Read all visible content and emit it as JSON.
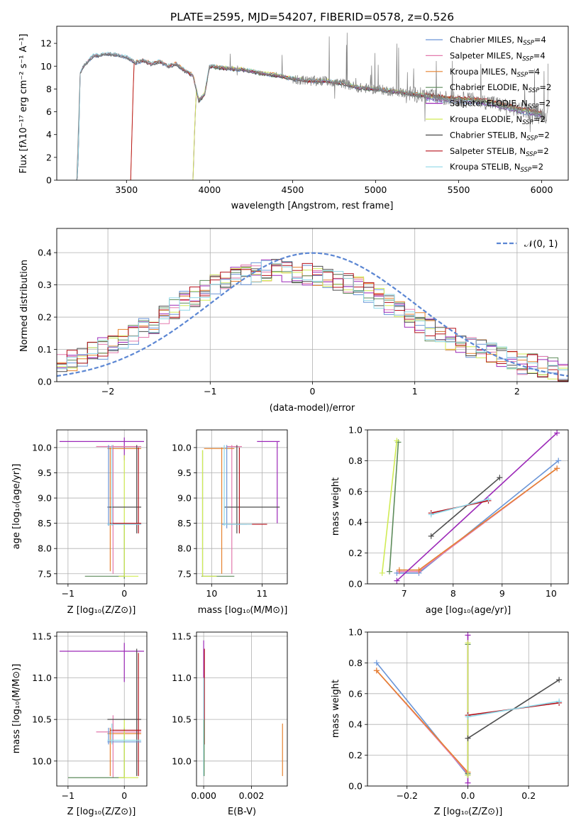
{
  "figure": {
    "title": "PLATE=2595, MJD=54207, FIBERID=0578, z=0.526"
  },
  "models": [
    {
      "name": "Chabrier MILES, N_SSP=4",
      "base": "Chabrier MILES, N",
      "sub": "SSP",
      "tail": "=4",
      "color": "#6a95d7"
    },
    {
      "name": "Salpeter MILES, N_SSP=4",
      "base": "Salpeter MILES, N",
      "sub": "SSP",
      "tail": "=4",
      "color": "#e37aad"
    },
    {
      "name": "Kroupa MILES, N_SSP=4",
      "base": "Kroupa MILES, N",
      "sub": "SSP",
      "tail": "=4",
      "color": "#e6822f"
    },
    {
      "name": "Chabrier ELODIE, N_SSP=2",
      "base": "Chabrier ELODIE, N",
      "sub": "SSP",
      "tail": "=2",
      "color": "#5e8c5b"
    },
    {
      "name": "Salpeter ELODIE, N_SSP=2",
      "base": "Salpeter ELODIE, N",
      "sub": "SSP",
      "tail": "=2",
      "color": "#9c29b8"
    },
    {
      "name": "Kroupa ELODIE, N_SSP=2",
      "base": "Kroupa ELODIE, N",
      "sub": "SSP",
      "tail": "=2",
      "color": "#d0eb55"
    },
    {
      "name": "Chabrier STELIB, N_SSP=2",
      "base": "Chabrier STELIB, N",
      "sub": "SSP",
      "tail": "=2",
      "color": "#4d4d4d"
    },
    {
      "name": "Salpeter STELIB, N_SSP=2",
      "base": "Salpeter STELIB, N",
      "sub": "SSP",
      "tail": "=2",
      "color": "#b5121b"
    },
    {
      "name": "Kroupa STELIB, N_SSP=2",
      "base": "Kroupa STELIB, N",
      "sub": "SSP",
      "tail": "=2",
      "color": "#8fd8e8"
    }
  ],
  "labels": {
    "spec_xlabel": "wavelength [Angstrom, rest frame]",
    "spec_ylabel": "Flux [fλ10⁻¹⁷ erg cm⁻² s⁻¹ A⁻¹]",
    "res_xlabel": "(data-model)/error",
    "res_ylabel": "Normed distribution",
    "gauss_label": "𝒩(0, 1)",
    "age_ylabel": "age  [log₁₀(age/yr)]",
    "z_xlabel": "Z [log₁₀(Z/Z⊙)]",
    "mass_xlabel": "mass [log₁₀(M/M⊙)]",
    "mw_ylabel": "mass weight",
    "age_xlabel": "age  [log₁₀(age/yr)]",
    "mass_ylabel": "mass [log₁₀(M/M⊙)]",
    "ebv_xlabel": "E(B-V)"
  },
  "chart_data": [
    {
      "id": "spectrum",
      "type": "line",
      "title": "PLATE=2595, MJD=54207, FIBERID=0578, z=0.526",
      "xlabel": "wavelength [Angstrom, rest frame]",
      "ylabel": "Flux [fλ10⁻¹⁷ erg cm⁻² s⁻¹ A⁻¹]",
      "xlim": [
        3080,
        6160
      ],
      "ylim": [
        0,
        13.5
      ],
      "xticks": [
        3500,
        4000,
        4500,
        5000,
        5500,
        6000
      ],
      "yticks": [
        0,
        2,
        4,
        6,
        8,
        10,
        12
      ],
      "legend": "top-right",
      "grid": false,
      "data_color": "#808080",
      "model_starts": [
        3200,
        3200,
        3525,
        3900,
        3900,
        3900,
        3200,
        3525,
        3200
      ],
      "continuum": {
        "x": [
          3200,
          3220,
          3240,
          3300,
          3400,
          3500,
          3550,
          3600,
          3650,
          3700,
          3750,
          3800,
          3850,
          3900,
          3935,
          3970,
          4000,
          4050,
          4100,
          4200,
          4300,
          4400,
          4500,
          4600,
          4700,
          4800,
          4900,
          5000,
          5100,
          5200,
          5300,
          5400,
          5500,
          5600,
          5700,
          5800,
          5900,
          6000,
          6050
        ],
        "y": [
          0,
          9.3,
          10.0,
          10.9,
          11.1,
          10.8,
          10.3,
          10.5,
          10.2,
          10.4,
          10.0,
          10.2,
          9.6,
          9.2,
          7.0,
          7.5,
          10.0,
          9.9,
          9.8,
          9.7,
          9.4,
          9.2,
          8.9,
          8.7,
          8.7,
          8.5,
          8.1,
          8.0,
          7.8,
          7.6,
          7.4,
          7.2,
          7.1,
          7.0,
          6.8,
          6.4,
          6.1,
          5.8,
          5.6
        ]
      }
    },
    {
      "id": "residuals",
      "type": "histogram",
      "xlabel": "(data-model)/error",
      "ylabel": "Normed distribution",
      "xlim": [
        -2.5,
        2.5
      ],
      "ylim": [
        0,
        0.475
      ],
      "xticks": [
        -2,
        -1,
        0,
        1,
        2
      ],
      "yticks": [
        0.0,
        0.1,
        0.2,
        0.3,
        0.4
      ],
      "bin_width": 0.1,
      "gaussian": {
        "name": "𝒩(0, 1)",
        "mu": 0,
        "sigma": 1,
        "color": "#5b86d3"
      },
      "base_curve": {
        "x": [
          -2.5,
          -2.0,
          -1.6,
          -1.2,
          -0.8,
          -0.4,
          0.0,
          0.4,
          0.8,
          1.2,
          1.6,
          2.0,
          2.5
        ],
        "y": [
          0.05,
          0.11,
          0.17,
          0.26,
          0.32,
          0.35,
          0.33,
          0.3,
          0.23,
          0.15,
          0.1,
          0.06,
          0.03
        ]
      },
      "grid": true,
      "legend": "top-right"
    },
    {
      "id": "age_vs_Z",
      "type": "errorbar",
      "xlabel": "Z [log₁₀(Z/Z⊙)]",
      "ylabel": "age  [log₁₀(age/yr)]",
      "xlim": [
        -1.2,
        0.4
      ],
      "ylim": [
        7.3,
        10.35
      ],
      "xticks": [
        -1,
        0
      ],
      "yticks": [
        7.5,
        8.0,
        8.5,
        9.0,
        9.5,
        10.0
      ],
      "segments": [
        {
          "m": 4,
          "h": [
            -1.15,
            0.35,
            10.12
          ],
          "v": [
            0.0,
            9.75,
            10.2
          ]
        },
        {
          "m": 1,
          "h": [
            -0.5,
            0.3,
            10.02
          ],
          "v": [
            -0.2,
            7.5,
            10.05
          ]
        },
        {
          "m": 2,
          "h": [
            -0.3,
            0.3,
            9.98
          ],
          "v": [
            -0.25,
            7.55,
            10.0
          ]
        },
        {
          "m": 3,
          "h": [
            -0.7,
            0.0,
            7.45
          ],
          "v": [
            0.0,
            7.4,
            8.5
          ]
        },
        {
          "m": 5,
          "h": [
            -0.1,
            0.25,
            7.45
          ],
          "v": [
            0.0,
            7.45,
            9.85
          ]
        },
        {
          "m": 6,
          "h": [
            -0.3,
            0.3,
            8.82
          ],
          "v": [
            0.22,
            8.3,
            10.05
          ]
        },
        {
          "m": 7,
          "h": [
            -0.25,
            0.3,
            8.5
          ],
          "v": [
            0.25,
            8.3,
            10.0
          ]
        },
        {
          "m": 0,
          "h": [
            -0.3,
            0.3,
            8.48
          ],
          "v": [
            -0.28,
            8.45,
            10.05
          ]
        },
        {
          "m": 8,
          "h": [
            -0.3,
            0.3,
            8.48
          ],
          "v": [
            -0.22,
            8.45,
            10.05
          ]
        }
      ]
    },
    {
      "id": "age_vs_mass",
      "type": "errorbar",
      "xlabel": "mass [log₁₀(M/M⊙)]",
      "ylabel": "",
      "xlim": [
        9.7,
        11.5
      ],
      "ylim": [
        7.3,
        10.35
      ],
      "xticks": [
        10,
        11
      ],
      "yticks": [
        7.5,
        8.0,
        8.5,
        9.0,
        9.5,
        10.0
      ],
      "segments": [
        {
          "m": 4,
          "h": [
            10.9,
            11.35,
            10.12
          ],
          "v": [
            11.3,
            8.5,
            10.12
          ]
        },
        {
          "m": 1,
          "h": [
            10.3,
            10.6,
            10.02
          ],
          "v": [
            10.4,
            7.5,
            10.05
          ]
        },
        {
          "m": 2,
          "h": [
            9.85,
            10.45,
            9.98
          ],
          "v": [
            10.2,
            7.5,
            10.0
          ]
        },
        {
          "m": 3,
          "h": [
            9.8,
            10.45,
            7.45
          ],
          "v": [
            9.82,
            7.45,
            9.95
          ]
        },
        {
          "m": 5,
          "h": [
            9.82,
            10.1,
            7.45
          ],
          "v": [
            9.82,
            7.45,
            9.95
          ]
        },
        {
          "m": 6,
          "h": [
            10.25,
            11.35,
            8.82
          ],
          "v": [
            10.5,
            8.3,
            10.05
          ]
        },
        {
          "m": 7,
          "h": [
            10.3,
            11.1,
            8.48
          ],
          "v": [
            10.55,
            8.3,
            10.0
          ]
        },
        {
          "m": 0,
          "h": [
            10.2,
            10.7,
            8.48
          ],
          "v": [
            10.3,
            8.4,
            10.05
          ]
        },
        {
          "m": 8,
          "h": [
            10.25,
            10.8,
            8.48
          ],
          "v": [
            10.25,
            8.45,
            10.05
          ]
        }
      ]
    },
    {
      "id": "massweight_vs_age",
      "type": "line",
      "xlabel": "age  [log₁₀(age/yr)]",
      "ylabel": "mass weight",
      "xlim": [
        6.25,
        10.35
      ],
      "ylim": [
        0,
        1.0
      ],
      "xticks": [
        7,
        8,
        9,
        10
      ],
      "yticks": [
        0.0,
        0.2,
        0.4,
        0.6,
        0.8,
        1.0
      ],
      "series": [
        {
          "m": 0,
          "x": [
            6.85,
            7.3,
            10.15
          ],
          "y": [
            0.07,
            0.07,
            0.8
          ]
        },
        {
          "m": 1,
          "x": [
            6.9,
            7.3,
            10.12
          ],
          "y": [
            0.08,
            0.08,
            0.75
          ]
        },
        {
          "m": 2,
          "x": [
            6.9,
            7.3,
            10.12
          ],
          "y": [
            0.09,
            0.09,
            0.75
          ]
        },
        {
          "m": 3,
          "x": [
            6.7,
            6.88
          ],
          "y": [
            0.08,
            0.92
          ]
        },
        {
          "m": 4,
          "x": [
            6.85,
            10.12
          ],
          "y": [
            0.02,
            0.98
          ]
        },
        {
          "m": 5,
          "x": [
            6.55,
            6.85
          ],
          "y": [
            0.07,
            0.93
          ]
        },
        {
          "m": 6,
          "x": [
            7.55,
            8.95
          ],
          "y": [
            0.31,
            0.69
          ]
        },
        {
          "m": 7,
          "x": [
            7.55,
            8.72
          ],
          "y": [
            0.46,
            0.54
          ]
        },
        {
          "m": 8,
          "x": [
            7.55,
            8.72
          ],
          "y": [
            0.45,
            0.55
          ]
        }
      ]
    },
    {
      "id": "mass_vs_Z",
      "type": "errorbar",
      "xlabel": "Z [log₁₀(Z/Z⊙)]",
      "ylabel": "mass [log₁₀(M/M⊙)]",
      "xlim": [
        -1.2,
        0.4
      ],
      "ylim": [
        9.7,
        11.55
      ],
      "xticks": [
        -1,
        0
      ],
      "yticks": [
        10.0,
        10.5,
        11.0,
        11.5
      ],
      "segments": [
        {
          "m": 4,
          "h": [
            -1.15,
            0.35,
            11.32
          ],
          "v": [
            0.0,
            10.95,
            11.42
          ]
        },
        {
          "m": 1,
          "h": [
            -0.5,
            0.3,
            10.35
          ],
          "v": [
            -0.2,
            9.8,
            10.55
          ]
        },
        {
          "m": 2,
          "h": [
            -0.3,
            0.3,
            10.33
          ],
          "v": [
            -0.25,
            9.82,
            10.4
          ]
        },
        {
          "m": 3,
          "h": [
            -1.0,
            0.0,
            9.8
          ],
          "v": [
            0.0,
            9.8,
            10.4
          ]
        },
        {
          "m": 5,
          "h": [
            -0.1,
            0.25,
            9.8
          ],
          "v": [
            0.0,
            9.8,
            10.5
          ]
        },
        {
          "m": 6,
          "h": [
            -0.3,
            0.3,
            10.5
          ],
          "v": [
            0.22,
            9.82,
            11.35
          ]
        },
        {
          "m": 7,
          "h": [
            -0.25,
            0.3,
            10.37
          ],
          "v": [
            0.25,
            9.82,
            11.3
          ]
        },
        {
          "m": 0,
          "h": [
            -0.3,
            0.3,
            10.23
          ],
          "v": [
            -0.28,
            10.2,
            10.4
          ]
        },
        {
          "m": 8,
          "h": [
            -0.3,
            0.3,
            10.25
          ],
          "v": [
            -0.22,
            10.2,
            10.45
          ]
        }
      ]
    },
    {
      "id": "mass_vs_ebv",
      "type": "errorbar",
      "xlabel": "E(B-V)",
      "ylabel": "",
      "xlim": [
        -0.0003,
        0.0035
      ],
      "ylim": [
        9.7,
        11.55
      ],
      "xticks": [
        0.0,
        0.002
      ],
      "xticklabels": [
        "0.000",
        "0.002"
      ],
      "yticks": [
        10.0,
        10.5,
        11.0,
        11.5
      ],
      "segments": [
        {
          "m": 4,
          "h": [
            0,
            0,
            11.3
          ],
          "v": [
            0.0,
            9.82,
            11.45
          ]
        },
        {
          "m": 7,
          "h": [
            0,
            0,
            10.5
          ],
          "v": [
            3e-05,
            10.2,
            11.35
          ]
        },
        {
          "m": 8,
          "h": [
            0,
            0,
            10.2
          ],
          "v": [
            0.0,
            9.82,
            11.0
          ]
        },
        {
          "m": 2,
          "h": [
            0,
            0,
            10.2
          ],
          "v": [
            0.0033,
            9.82,
            10.45
          ]
        },
        {
          "m": 3,
          "h": [
            0,
            0,
            10.0
          ],
          "v": [
            2e-05,
            9.82,
            10.5
          ]
        }
      ]
    },
    {
      "id": "massweight_vs_Z",
      "type": "line",
      "xlabel": "Z [log₁₀(Z/Z⊙)]",
      "ylabel": "mass weight",
      "xlim": [
        -0.33,
        0.33
      ],
      "ylim": [
        0,
        1.0
      ],
      "xticks": [
        -0.2,
        0.0,
        0.2
      ],
      "xticklabels": [
        "−0.2",
        "0.0",
        "0.2"
      ],
      "yticks": [
        0.0,
        0.2,
        0.4,
        0.6,
        0.8,
        1.0
      ],
      "series": [
        {
          "m": 0,
          "x": [
            -0.3,
            0.0
          ],
          "y": [
            0.8,
            0.07
          ]
        },
        {
          "m": 1,
          "x": [
            -0.3,
            0.0
          ],
          "y": [
            0.75,
            0.08
          ]
        },
        {
          "m": 2,
          "x": [
            -0.3,
            0.0
          ],
          "y": [
            0.75,
            0.09
          ]
        },
        {
          "m": 3,
          "x": [
            0.0,
            0.0
          ],
          "y": [
            0.08,
            0.92
          ]
        },
        {
          "m": 4,
          "x": [
            0.0,
            0.0
          ],
          "y": [
            0.02,
            0.98
          ]
        },
        {
          "m": 5,
          "x": [
            0.0,
            0.0
          ],
          "y": [
            0.07,
            0.93
          ]
        },
        {
          "m": 6,
          "x": [
            0.0,
            0.3
          ],
          "y": [
            0.31,
            0.69
          ]
        },
        {
          "m": 7,
          "x": [
            0.0,
            0.3
          ],
          "y": [
            0.46,
            0.54
          ]
        },
        {
          "m": 8,
          "x": [
            0.0,
            0.3
          ],
          "y": [
            0.45,
            0.55
          ]
        }
      ]
    }
  ]
}
